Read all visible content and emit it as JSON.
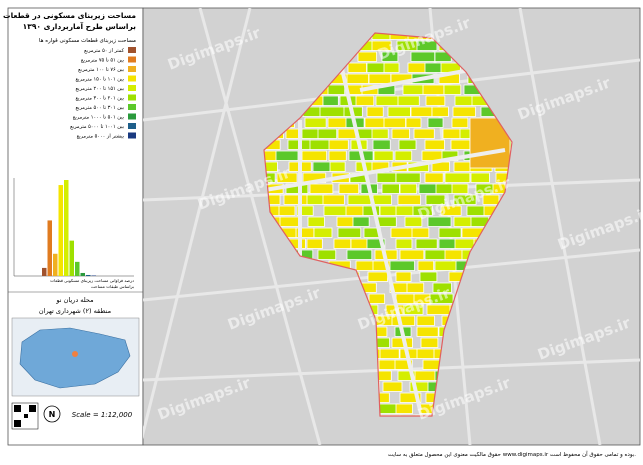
{
  "header": {
    "title_lines": [
      "مساحت زیربنای مسکونی در قطعات",
      "براساس طرح آماربرداری ۱۳۹۰"
    ]
  },
  "legend": {
    "title": "مساحت زیربنای قطعات مسکونی قواره ها",
    "items": [
      {
        "label": "کمتر از ۵۰ مترمربع",
        "color": "#a0522d"
      },
      {
        "label": "بین ۵۱ تا ۷۵ مترمربع",
        "color": "#e07b20"
      },
      {
        "label": "بین ۷۶ تا ۱۰۰ مترمربع",
        "color": "#f0b020"
      },
      {
        "label": "بین ۱۰۱ تا ۱۵۰ مترمربع",
        "color": "#f5e400"
      },
      {
        "label": "بین ۱۵۱ تا ۲۰۰ مترمربع",
        "color": "#d4ee00"
      },
      {
        "label": "بین ۲۰۱ تا ۳۰۰ مترمربع",
        "color": "#9ee000"
      },
      {
        "label": "بین ۳۰۱ تا ۵۰۰ مترمربع",
        "color": "#5cc82a"
      },
      {
        "label": "بین ۵۰۱ تا ۱۰۰۰ مترمربع",
        "color": "#2a9a3c"
      },
      {
        "label": "بین ۱۰۰۱ تا ۵۰۰۰ مترمربع",
        "color": "#1f5f8a"
      },
      {
        "label": "بیشتر از ۵۰۰۰ مترمربع",
        "color": "#1a3a80"
      }
    ]
  },
  "histogram": {
    "values": [
      8,
      55,
      22,
      90,
      95,
      35,
      14,
      3,
      1,
      0.5
    ],
    "caption_lines": [
      "درصد فراوانی مساحت زیربنای مسکونی قطعات",
      "براساس طبقات مساحت"
    ]
  },
  "location": {
    "neighborhood": "محله دریان نو",
    "district": "منطقه (۲) شهرداری تهران"
  },
  "scale": "Scale = 1:12,000",
  "north": "N",
  "watermark": "Digimaps.ir",
  "footer": "حقوق مالکیت معنوی این محصول متعلق به سایت www.digimaps.ir بوده و تمامی حقوق آن محفوظ است."
}
